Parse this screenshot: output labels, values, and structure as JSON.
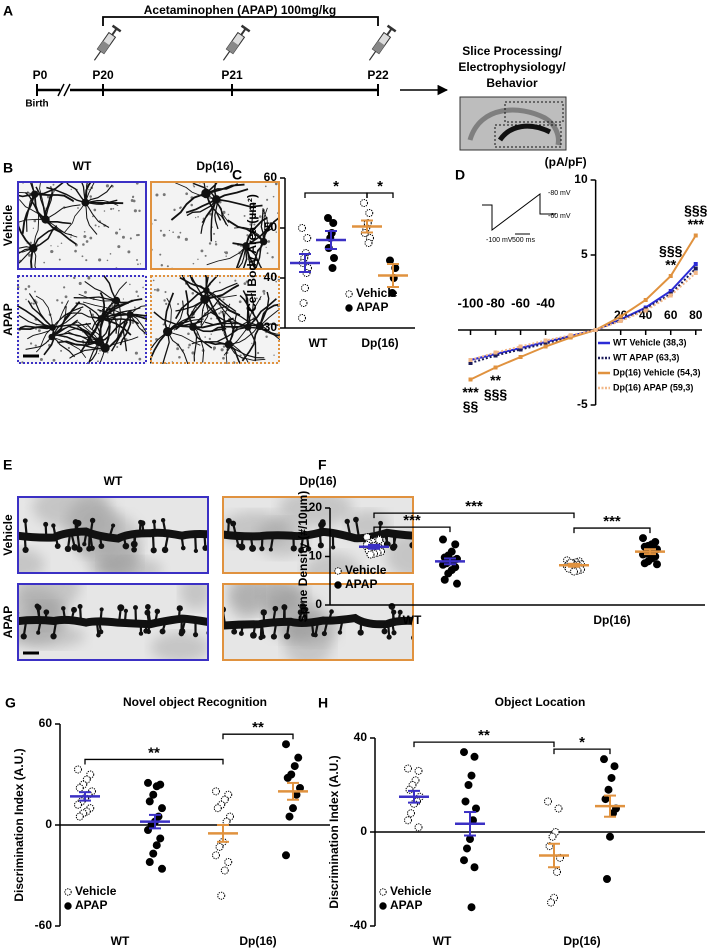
{
  "timeline": {
    "panel": "A",
    "treatment": "Acetaminophen (APAP) 100mg/kg",
    "ages": [
      "P0",
      "P20",
      "P21",
      "P22"
    ],
    "birth": "Birth",
    "outcome": [
      "Slice Processing/",
      "Electrophysiology/",
      "Behavior"
    ]
  },
  "micrographs": [
    {
      "panel": "B",
      "columns": [
        "WT",
        "Dp(16)"
      ],
      "rows": [
        "Vehicle",
        "APAP"
      ],
      "column_colors": [
        "#3b30c4",
        "#e0923f"
      ],
      "style": "astrocytes"
    },
    {
      "panel": "E",
      "columns": [
        "WT",
        "Dp(16)"
      ],
      "rows": [
        "Vehicle",
        "APAP"
      ],
      "column_colors": [
        "#3b30c4",
        "#e0923f"
      ],
      "style": "dendrites"
    }
  ],
  "chart_data": [
    {
      "panel": "C",
      "type": "dotplot",
      "ylabel": "Cell Body Area (µm²)",
      "ylim": [
        30,
        60
      ],
      "yticks": [
        30,
        40,
        50,
        60
      ],
      "categories": [
        "WT",
        "Dp(16)"
      ],
      "category_colors": [
        "#3b30c4",
        "#e0923f"
      ],
      "series": [
        {
          "name": "Vehicle",
          "marker": "open",
          "values": [
            [
              50,
              48,
              45,
              44,
              43,
              42,
              41,
              38,
              35,
              32
            ],
            [
              55,
              53,
              51,
              50,
              49,
              48,
              47
            ]
          ],
          "mean": [
            43,
            50.3
          ],
          "sem": [
            1.8,
            1.2
          ]
        },
        {
          "name": "APAP",
          "marker": "filled",
          "values": [
            [
              52,
              51,
              49,
              48,
              46,
              44,
              42
            ],
            [
              43.5,
              42,
              40,
              37
            ]
          ],
          "mean": [
            47.6,
            40.5
          ],
          "sem": [
            1.8,
            2.3
          ]
        }
      ],
      "brackets": [
        {
          "label": "*",
          "from": [
            0,
            0
          ],
          "to": [
            1,
            0
          ]
        },
        {
          "label": "*",
          "from": [
            1,
            0
          ],
          "to": [
            1,
            1
          ]
        }
      ],
      "legend": "lower right"
    },
    {
      "panel": "D",
      "type": "line",
      "ylabel": "(pA/pF)",
      "x": [
        -100,
        -80,
        -60,
        -40,
        -20,
        0,
        20,
        40,
        60,
        80
      ],
      "xlim": [
        -110,
        85
      ],
      "xticks": [
        -100,
        -80,
        -60,
        -40,
        20,
        40,
        60,
        80
      ],
      "ylim": [
        -5,
        10
      ],
      "yticks": [
        -5,
        5,
        10
      ],
      "series": [
        {
          "name": "WT Vehicle (38,3)",
          "color": "#2b2bd6",
          "dash": "solid",
          "values": [
            -2.0,
            -1.6,
            -1.2,
            -0.8,
            -0.4,
            0,
            0.7,
            1.5,
            2.6,
            4.4
          ]
        },
        {
          "name": "WT APAP (63,3)",
          "color": "#1c1c5a",
          "dash": "dotted",
          "values": [
            -2.2,
            -1.7,
            -1.3,
            -0.9,
            -0.45,
            0,
            0.65,
            1.4,
            2.4,
            4.1
          ]
        },
        {
          "name": "Dp(16) Vehicle (54,3)",
          "color": "#e0923f",
          "dash": "solid",
          "values": [
            -3.3,
            -2.5,
            -1.8,
            -1.1,
            -0.5,
            0,
            0.9,
            2.0,
            3.6,
            6.3
          ]
        },
        {
          "name": "Dp(16) APAP (59,3)",
          "color": "#f2b888",
          "dash": "dotted",
          "values": [
            -2.0,
            -1.5,
            -1.1,
            -0.7,
            -0.35,
            0,
            0.6,
            1.3,
            2.3,
            3.8
          ]
        }
      ],
      "annotations": [
        {
          "x": -100,
          "text": [
            "***",
            "§§"
          ]
        },
        {
          "x": -80,
          "text": [
            "**",
            "§§§"
          ]
        },
        {
          "x": 60,
          "text": [
            "§§§",
            "**"
          ]
        },
        {
          "x": 80,
          "text": [
            "§§§",
            "***"
          ]
        }
      ],
      "protocol_labels": [
        "-80 mV",
        "-100 mV",
        "500 ms",
        "-60 mV"
      ],
      "legend": "lower right"
    },
    {
      "panel": "F",
      "type": "dotplot",
      "ylabel": "Spine Density (#/10µm)",
      "ylim": [
        0,
        20
      ],
      "yticks": [
        0,
        10,
        20
      ],
      "categories": [
        "WT",
        "Dp(16)"
      ],
      "category_colors": [
        "#3b30c4",
        "#e0923f"
      ],
      "series": [
        {
          "name": "Vehicle",
          "marker": "open",
          "values": [
            [
              14,
              13.6,
              13.2,
              13,
              12.8,
              12.6,
              12.4,
              12.2,
              12,
              12,
              11.8,
              11.6,
              11.4,
              11.2,
              11,
              10.8,
              10.6,
              10.4,
              12.4,
              13.4
            ],
            [
              9.2,
              9,
              8.8,
              8.6,
              8.5,
              8.4,
              8.3,
              8.2,
              8.1,
              8,
              7.9,
              7.8,
              7.6,
              7.5,
              7.3,
              7.1,
              6.9,
              8.7
            ]
          ],
          "mean": [
            12,
            8.2
          ],
          "sem": [
            0.4,
            0.3
          ]
        },
        {
          "name": "APAP",
          "marker": "filled",
          "values": [
            [
              13.5,
              12.5,
              11,
              10.2,
              9.8,
              9.5,
              9.2,
              9,
              8.6,
              8.3,
              7.8,
              7.2,
              6.5,
              5.2,
              4.4
            ],
            [
              13.8,
              13,
              12.5,
              12.2,
              12,
              11.5,
              11.2,
              11,
              10.6,
              10.4,
              10,
              9.6,
              9,
              8.6,
              8.4
            ]
          ],
          "mean": [
            9,
            11
          ],
          "sem": [
            0.6,
            0.5
          ]
        }
      ],
      "brackets": [
        {
          "label": "***",
          "from": [
            0,
            0
          ],
          "to": [
            0,
            1
          ]
        },
        {
          "label": "***",
          "from": [
            0,
            0
          ],
          "to": [
            1,
            0
          ]
        },
        {
          "label": "***",
          "from": [
            1,
            0
          ],
          "to": [
            1,
            1
          ]
        }
      ],
      "legend": "lower left"
    },
    {
      "panel": "G",
      "type": "dotplot",
      "title": "Novel object Recognition",
      "ylabel": "Discrimination Index (A.U.)",
      "ylim": [
        -60,
        60
      ],
      "yticks": [
        -60,
        0,
        60
      ],
      "categories": [
        "WT",
        "Dp(16)"
      ],
      "category_colors": [
        "#3b30c4",
        "#e0923f"
      ],
      "series": [
        {
          "name": "Vehicle",
          "marker": "open",
          "values": [
            [
              33,
              30,
              27,
              24,
              22,
              20,
              18,
              16,
              14,
              12,
              10,
              8,
              7,
              5
            ],
            [
              20,
              18,
              15,
              12,
              10,
              5,
              2,
              -10,
              -13,
              -18,
              -22,
              -27,
              -42
            ]
          ],
          "mean": [
            17,
            -5
          ],
          "sem": [
            2.5,
            5
          ]
        },
        {
          "name": "APAP",
          "marker": "filled",
          "values": [
            [
              25,
              24,
              23,
              18,
              14,
              10,
              5,
              2,
              0,
              -3,
              -8,
              -12,
              -17,
              -22,
              -26
            ],
            [
              48,
              40,
              35,
              30,
              28,
              22,
              18,
              10,
              5,
              -18
            ]
          ],
          "mean": [
            2,
            20
          ],
          "sem": [
            4,
            5
          ]
        }
      ],
      "brackets": [
        {
          "label": "**",
          "from": [
            0,
            0
          ],
          "to": [
            1,
            0
          ]
        },
        {
          "label": "**",
          "from": [
            1,
            0
          ],
          "to": [
            1,
            1
          ]
        }
      ],
      "legend": "lower left"
    },
    {
      "panel": "H",
      "type": "dotplot",
      "title": "Object Location",
      "ylabel": "Discrimination Index (A.U.)",
      "ylim": [
        -40,
        40
      ],
      "yticks": [
        -40,
        0,
        40
      ],
      "categories": [
        "WT",
        "Dp(16)"
      ],
      "category_colors": [
        "#3b30c4",
        "#e0923f"
      ],
      "series": [
        {
          "name": "Vehicle",
          "marker": "open",
          "values": [
            [
              27,
              26,
              22,
              20,
              18,
              15,
              13,
              12,
              8,
              5,
              2
            ],
            [
              13,
              10,
              0,
              -2,
              -6,
              -11,
              -17,
              -28,
              -30
            ]
          ],
          "mean": [
            15,
            -10
          ],
          "sem": [
            2.5,
            5
          ]
        },
        {
          "name": "APAP",
          "marker": "filled",
          "values": [
            [
              34,
              32,
              24,
              20,
              13,
              10,
              5,
              -3,
              -7,
              -12,
              -15,
              -32
            ],
            [
              31,
              28,
              23,
              18,
              14,
              10,
              8,
              -2,
              -20
            ]
          ],
          "mean": [
            3.5,
            11
          ],
          "sem": [
            5,
            4.5
          ]
        }
      ],
      "brackets": [
        {
          "label": "**",
          "from": [
            0,
            0
          ],
          "to": [
            1,
            0
          ]
        },
        {
          "label": "*",
          "from": [
            1,
            0
          ],
          "to": [
            1,
            1
          ]
        }
      ],
      "legend": "lower left"
    }
  ]
}
